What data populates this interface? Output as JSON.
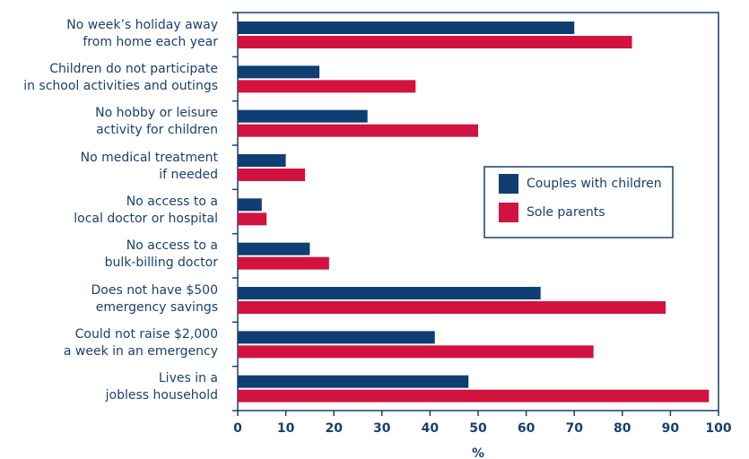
{
  "chart_data": {
    "type": "barh",
    "categories": [
      "No week’s holiday away\nfrom home each year",
      "Children do not participate\nin school activities and outings",
      "No hobby or leisure\nactivity for children",
      "No medical treatment\nif needed",
      "No access to a\nlocal doctor or hospital",
      "No access to a\nbulk-billing doctor",
      "Does not have $500\nemergency savings",
      "Could not raise $2,000\na week in an emergency",
      "Lives in a\njobless household"
    ],
    "series": [
      {
        "name": "Couples with children",
        "color": "#0f3f72",
        "values": [
          70,
          17,
          27,
          10,
          5,
          15,
          63,
          41,
          48
        ]
      },
      {
        "name": "Sole parents",
        "color": "#d2123f",
        "values": [
          82,
          37,
          50,
          14,
          6,
          19,
          89,
          74,
          98
        ]
      }
    ],
    "xlabel": "%",
    "xlim": [
      0,
      100
    ],
    "xticks": [
      0,
      10,
      20,
      30,
      40,
      50,
      60,
      70,
      80,
      90,
      100
    ],
    "legend": "right"
  }
}
